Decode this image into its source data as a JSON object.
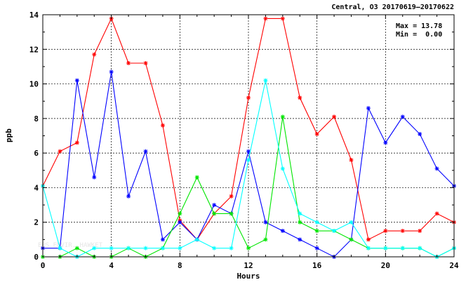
{
  "chart_data": {
    "type": "line",
    "title": "Central, O3 20170619–20170622",
    "xlabel": "Hours",
    "ylabel": "ppb",
    "xlim": [
      0,
      24
    ],
    "ylim": [
      0,
      14
    ],
    "xticks": [
      0,
      4,
      8,
      12,
      16,
      20,
      24
    ],
    "yticks": [
      0,
      2,
      4,
      6,
      8,
      10,
      12,
      14
    ],
    "grid": true,
    "stats": {
      "max": "Max = 13.78",
      "min": "Min =  0.00"
    },
    "watermark": "EPS ENVIR. HAWKET",
    "x": [
      0,
      1,
      2,
      3,
      4,
      5,
      6,
      7,
      8,
      9,
      10,
      11,
      12,
      13,
      14,
      15,
      16,
      17,
      18,
      19,
      20,
      21,
      22,
      23,
      24
    ],
    "series": [
      {
        "color": "#ff0000",
        "values": [
          4.1,
          6.1,
          6.6,
          11.7,
          13.78,
          11.2,
          11.2,
          7.6,
          2.1,
          1.0,
          2.5,
          3.5,
          9.2,
          13.78,
          13.78,
          9.2,
          7.1,
          8.1,
          5.6,
          1.0,
          1.5,
          1.5,
          1.5,
          2.5,
          2.0
        ]
      },
      {
        "color": "#0000ff",
        "values": [
          0.5,
          0.5,
          10.2,
          4.6,
          10.7,
          3.5,
          6.1,
          1.0,
          2.0,
          1.0,
          3.0,
          2.5,
          6.1,
          2.0,
          1.5,
          1.0,
          0.5,
          0.0,
          1.0,
          8.6,
          6.6,
          8.1,
          7.1,
          5.1,
          4.1
        ]
      },
      {
        "color": "#00e600",
        "values": [
          0.0,
          0.0,
          0.5,
          0.0,
          0.0,
          0.5,
          0.0,
          0.5,
          2.5,
          4.6,
          2.5,
          2.5,
          0.5,
          1.0,
          8.1,
          2.0,
          1.5,
          1.5,
          1.0,
          0.5,
          0.5,
          0.5,
          0.5,
          0.0,
          0.5
        ]
      },
      {
        "color": "#00ffff",
        "values": [
          4.1,
          0.5,
          0.0,
          0.5,
          0.5,
          0.5,
          0.5,
          0.5,
          0.5,
          1.0,
          0.5,
          0.5,
          5.6,
          10.2,
          5.1,
          2.5,
          2.0,
          1.5,
          2.0,
          0.5,
          0.5,
          0.5,
          0.5,
          0.0,
          0.5
        ]
      }
    ]
  }
}
